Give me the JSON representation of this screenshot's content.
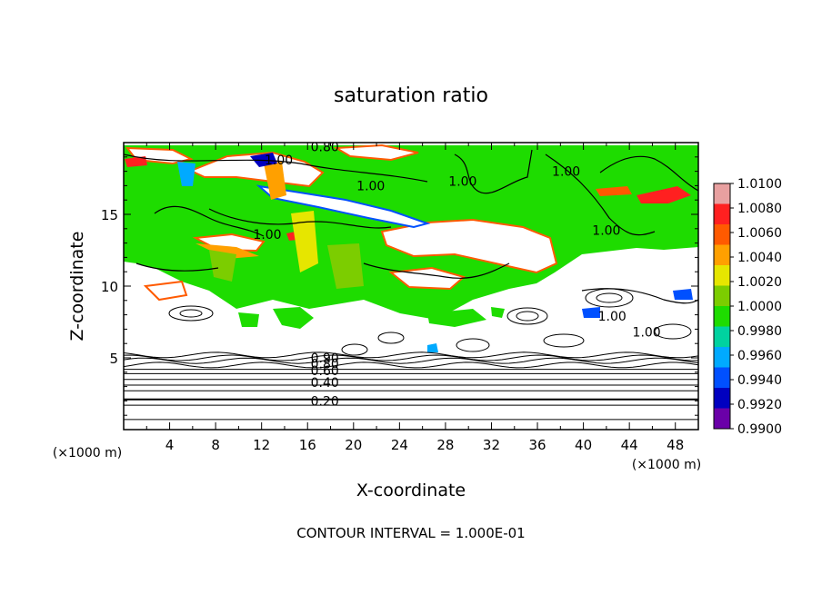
{
  "chart_data": {
    "type": "heatmap",
    "title": "saturation ratio",
    "xlabel": "X-coordinate",
    "ylabel": "Z-coordinate",
    "x_unit": "(×1000 m)",
    "z_unit": "(×1000 m)",
    "footer": "CONTOUR INTERVAL = 1.000E-01",
    "xlim": [
      0,
      50
    ],
    "ylim": [
      0,
      20
    ],
    "x_ticks": [
      4,
      8,
      12,
      16,
      20,
      24,
      28,
      32,
      36,
      40,
      44,
      48
    ],
    "y_ticks": [
      5,
      10,
      15
    ],
    "colorbar": {
      "range": [
        0.99,
        1.01
      ],
      "labels": [
        "1.0100",
        "1.0080",
        "1.0060",
        "1.0040",
        "1.0020",
        "1.0000",
        "0.9980",
        "0.9960",
        "0.9940",
        "0.9920",
        "0.9900"
      ],
      "colors": [
        "#e8a0a0",
        "#ff2020",
        "#ff5a00",
        "#ffa000",
        "#e6e600",
        "#7ccd00",
        "#1edc00",
        "#00d2a0",
        "#00aaff",
        "#0050ff",
        "#0000c0",
        "#6a00a8"
      ]
    },
    "contour_labels": [
      {
        "text": "0.80",
        "x": 17.5,
        "z": 19.7
      },
      {
        "text": "1.00",
        "x": 13.5,
        "z": 18.8
      },
      {
        "text": "1.00",
        "x": 21.5,
        "z": 17.0
      },
      {
        "text": "1.00",
        "x": 29.5,
        "z": 17.3
      },
      {
        "text": "1.00",
        "x": 38.5,
        "z": 18.0
      },
      {
        "text": "1.00",
        "x": 42.0,
        "z": 13.9
      },
      {
        "text": "1.00",
        "x": 12.5,
        "z": 13.6
      },
      {
        "text": "1.00",
        "x": 42.5,
        "z": 7.9
      },
      {
        "text": "1.00",
        "x": 45.5,
        "z": 6.8
      },
      {
        "text": "0.90",
        "x": 17.5,
        "z": 5.0
      },
      {
        "text": "0.80",
        "x": 17.5,
        "z": 4.6
      },
      {
        "text": "0.60",
        "x": 17.5,
        "z": 4.1
      },
      {
        "text": "0.40",
        "x": 17.5,
        "z": 3.3
      },
      {
        "text": "0.20",
        "x": 17.5,
        "z": 2.0
      }
    ],
    "lower_contour_levels_z": [
      0.7,
      1.7,
      2.1,
      2.7,
      3.1,
      3.5,
      3.9,
      4.2,
      4.5,
      4.8,
      5.0,
      5.2
    ]
  }
}
